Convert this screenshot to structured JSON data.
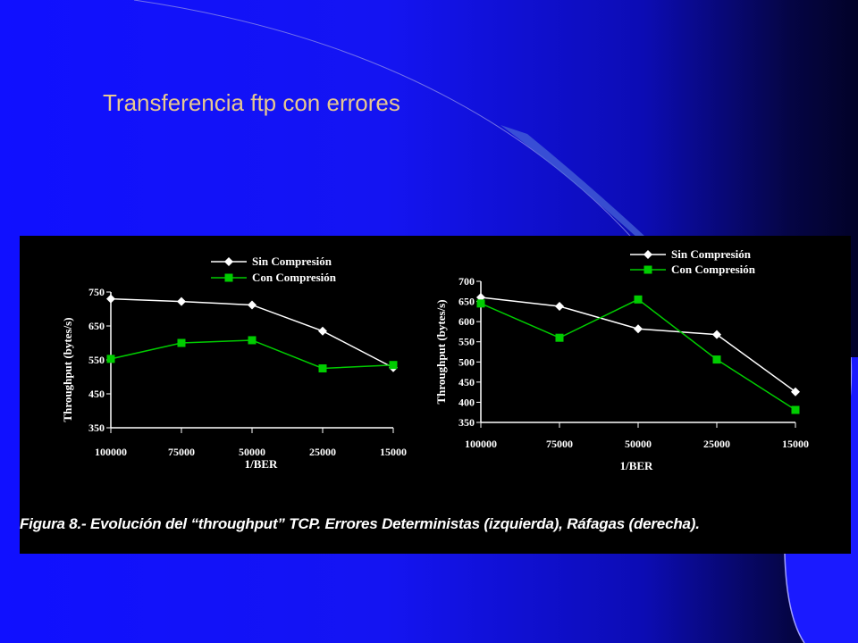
{
  "slide": {
    "title": "Transferencia ftp con errores"
  },
  "figure": {
    "caption": "Figura 8.- Evolución del “throughput” TCP. Errores Deterministas (izquierda), Ráfagas (derecha).",
    "colors": {
      "panel_bg": "#000000",
      "sin_compresion": "#ffffff",
      "con_compresion": "#00cc00",
      "title": "#e8c890"
    }
  },
  "chart_data": [
    {
      "type": "line",
      "categories": [
        "100000",
        "75000",
        "50000",
        "25000",
        "15000"
      ],
      "xlabel": "1/BER",
      "ylabel": "Throughput (bytes/s)",
      "ylim": [
        350,
        750
      ],
      "yticks": [
        "750",
        "650",
        "550",
        "450",
        "350"
      ],
      "grid": false,
      "legend": "top",
      "series": [
        {
          "name": "Sin Compresión",
          "marker": "diamond",
          "color": "#ffffff",
          "values": [
            730,
            722,
            712,
            635,
            527
          ]
        },
        {
          "name": "Con Compresión",
          "marker": "square",
          "color": "#00cc00",
          "values": [
            553,
            600,
            608,
            525,
            535
          ]
        }
      ]
    },
    {
      "type": "line",
      "categories": [
        "100000",
        "75000",
        "50000",
        "25000",
        "15000"
      ],
      "xlabel": "1/BER",
      "ylabel": "Throughput (bytes/s)",
      "ylim": [
        350,
        700
      ],
      "yticks": [
        "700",
        "650",
        "600",
        "550",
        "500",
        "450",
        "400",
        "350"
      ],
      "grid": false,
      "legend": "top-right",
      "series": [
        {
          "name": "Sin Compresión",
          "marker": "diamond",
          "color": "#ffffff",
          "values": [
            660,
            638,
            582,
            568,
            426
          ]
        },
        {
          "name": "Con Compresión",
          "marker": "square",
          "color": "#00cc00",
          "values": [
            645,
            560,
            655,
            506,
            381
          ]
        }
      ]
    }
  ]
}
